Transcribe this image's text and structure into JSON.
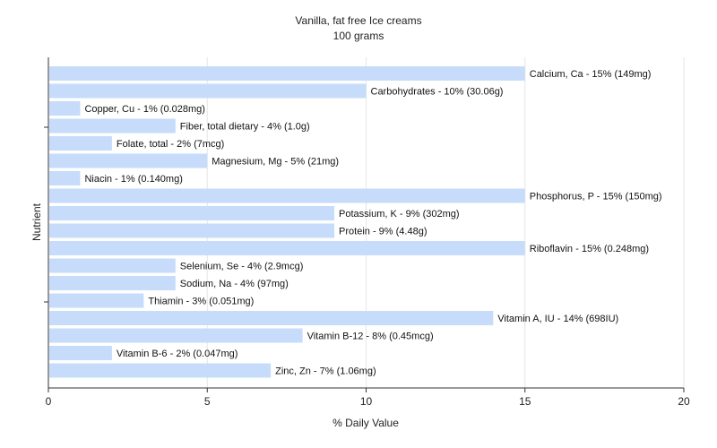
{
  "chart_data": {
    "type": "bar",
    "orientation": "horizontal",
    "title": "Vanilla, fat free Ice creams",
    "subtitle": "100 grams",
    "xlabel": "% Daily Value",
    "ylabel": "Nutrient",
    "xlim": [
      0,
      20
    ],
    "xticks": [
      "0",
      "5",
      "10",
      "15",
      "20"
    ],
    "grid": true,
    "bar_color": "#c6dcfa",
    "categories": [
      "Calcium, Ca",
      "Carbohydrates",
      "Copper, Cu",
      "Fiber, total dietary",
      "Folate, total",
      "Magnesium, Mg",
      "Niacin",
      "Phosphorus, P",
      "Potassium, K",
      "Protein",
      "Riboflavin",
      "Selenium, Se",
      "Sodium, Na",
      "Thiamin",
      "Vitamin A, IU",
      "Vitamin B-12",
      "Vitamin B-6",
      "Zinc, Zn"
    ],
    "values": [
      15,
      10,
      1,
      4,
      2,
      5,
      1,
      15,
      9,
      9,
      15,
      4,
      4,
      3,
      14,
      8,
      2,
      7
    ],
    "data_labels": [
      "Calcium, Ca - 15% (149mg)",
      "Carbohydrates - 10% (30.06g)",
      "Copper, Cu - 1% (0.028mg)",
      "Fiber, total dietary - 4% (1.0g)",
      "Folate, total - 2% (7mcg)",
      "Magnesium, Mg - 5% (21mg)",
      "Niacin - 1% (0.140mg)",
      "Phosphorus, P - 15% (150mg)",
      "Potassium, K - 9% (302mg)",
      "Protein - 9% (4.48g)",
      "Riboflavin - 15% (0.248mg)",
      "Selenium, Se - 4% (2.9mcg)",
      "Sodium, Na - 4% (97mg)",
      "Thiamin - 3% (0.051mg)",
      "Vitamin A, IU - 14% (698IU)",
      "Vitamin B-12 - 8% (0.45mcg)",
      "Vitamin B-6 - 2% (0.047mg)",
      "Zinc, Zn - 7% (1.06mg)"
    ]
  }
}
